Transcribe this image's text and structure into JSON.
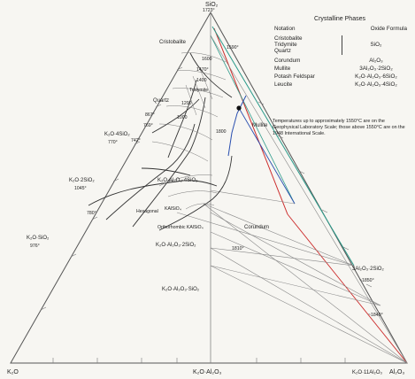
{
  "diagram": {
    "vertices": {
      "top": "SiO₂",
      "top_temp": "1723°",
      "left": "K₂O",
      "right": "Al₂O₃",
      "bottom_mid": "K₂O·Al₂O₃",
      "bottom_right_mid": "K₂O·11Al₂O₃"
    },
    "fields": {
      "cristobalite": "Cristobalite",
      "tridymite": "Tridymite",
      "quartz": "Quartz",
      "leucite": "K₂O·Al₂O₃·4SiO₂",
      "mullite": "Mullite",
      "corundum": "Corundum",
      "hexagonal": "Hexagonal",
      "hexagonal_formula": "KAlSiO₄",
      "orthorhombic": "Orthorhombic KAlSiO₄",
      "k2o_al2o3_2sio2": "K₂O·Al₂O₃·2SiO₂",
      "k2o_al2o3_sio2": "K₂O·Al₂O₃·SiO₂",
      "k2o_4sio2": "K₂O·4SiO₂",
      "k2o_2sio2": "K₂O·2SiO₂",
      "k2o_sio2": "K₂O·SiO₂",
      "mullite_formula": "3Al₂O₃·2SiO₂"
    },
    "temperatures": {
      "t1590": "1590°",
      "t1470": "1470°",
      "t867": "867°",
      "t769": "769°",
      "t770": "770°",
      "t742": "742°",
      "t1045": "1045°",
      "t780": "780°",
      "t976": "976°",
      "t1600": "1600",
      "t1400": "1400",
      "t1200": "1200",
      "t1000": "1000",
      "t1800": "1800",
      "t1850": "~1850°",
      "t1840": "~1840°",
      "t1810": "1810°"
    }
  },
  "legend": {
    "title": "Crystalline Phases",
    "col_notation": "Notation",
    "col_formula": "Oxide Formula",
    "silica_group": [
      "Cristobalite",
      "Tridymite",
      "Quartz"
    ],
    "silica_formula": "SiO₂",
    "rows": [
      {
        "name": "Corundum",
        "formula": "Al₂O₃"
      },
      {
        "name": "Mullite",
        "formula": "3Al₂O₃·2SiO₂"
      },
      {
        "name": "Potash Feldspar",
        "formula": "K₂O·Al₂O₃·6SiO₂"
      },
      {
        "name": "Leucite",
        "formula": "K₂O·Al₂O₃·4SiO₂"
      }
    ]
  },
  "note": "Temperatures up to approximately 1550°C are on the Geophysical Laboratory Scale; those above 1550°C are on the 1948 International Scale.",
  "colors": {
    "frame": "#555555",
    "red_line": "#cc2a2a",
    "teal_line": "#2a9a8a",
    "blue_line": "#2a4fb0",
    "boundary": "#333333"
  }
}
